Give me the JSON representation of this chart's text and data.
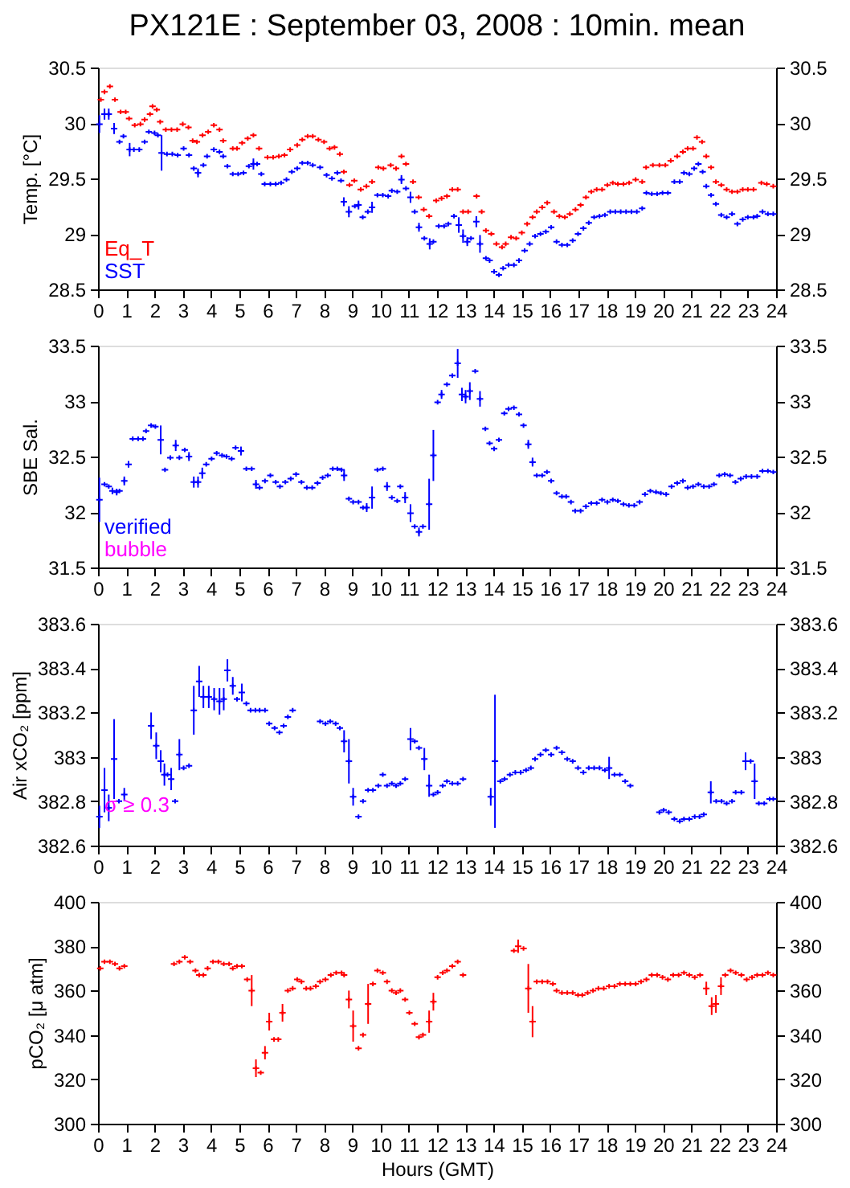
{
  "chart_data": [
    {
      "type": "scatter",
      "title": "PX121E : September 03, 2008 : 10min. mean",
      "ylabel": "Temp. [°C]",
      "xlim": [
        0,
        24
      ],
      "xticks": [
        0,
        1,
        2,
        3,
        4,
        5,
        6,
        7,
        8,
        9,
        10,
        11,
        12,
        13,
        14,
        15,
        16,
        17,
        18,
        19,
        20,
        21,
        22,
        23,
        24
      ],
      "ylim": [
        28.5,
        30.5
      ],
      "yticks": [
        28.5,
        29,
        29.5,
        30,
        30.5
      ],
      "y2lim": [
        28.5,
        30.5
      ],
      "y2ticks": [
        28.5,
        29,
        29.5,
        30,
        30.5
      ],
      "marker": "cross",
      "legend": "bottom left",
      "series": [
        {
          "name": "Eq_T",
          "color": "#ff0000",
          "x": [
            0.1,
            0.23,
            0.42,
            0.6,
            0.8,
            0.98,
            1.1,
            1.3,
            1.5,
            1.65,
            1.84,
            1.93,
            2.08,
            2.2,
            2.4,
            2.6,
            2.8,
            3.0,
            3.2,
            3.35,
            3.5,
            3.7,
            3.9,
            4.1,
            4.3,
            4.43,
            4.77,
            4.92,
            5.1,
            5.3,
            5.5,
            5.7,
            6.0,
            6.2,
            6.4,
            6.6,
            6.8,
            7.05,
            7.23,
            7.42,
            7.6,
            7.8,
            8.0,
            8.2,
            8.37,
            8.56,
            8.7,
            8.9,
            9.07,
            9.3,
            9.5,
            9.7,
            9.92,
            10.1,
            10.36,
            10.55,
            10.74,
            10.9,
            11.15,
            11.35,
            11.53,
            11.72,
            11.97,
            12.16,
            12.35,
            12.54,
            12.73,
            12.92,
            13.1,
            13.4,
            13.58,
            13.73,
            13.92,
            14.1,
            14.3,
            14.43,
            14.62,
            14.8,
            15.0,
            15.19,
            15.38,
            15.53,
            15.72,
            15.9,
            16.14,
            16.33,
            16.52,
            16.7,
            16.9,
            17.08,
            17.27,
            17.46,
            17.65,
            17.84,
            18.03,
            18.22,
            18.4,
            18.6,
            18.8,
            19.03,
            19.26,
            19.4,
            19.64,
            19.87,
            20.08,
            20.27,
            20.5,
            20.7,
            20.87,
            21.06,
            21.2,
            21.38,
            21.53,
            21.7,
            21.87,
            22.06,
            22.25,
            22.44,
            22.63,
            22.82,
            23.0,
            23.2,
            23.48,
            23.67,
            23.9
          ],
          "values": [
            30.21,
            30.28,
            30.33,
            30.21,
            30.1,
            30.1,
            30.04,
            29.98,
            29.99,
            30.03,
            30.08,
            30.15,
            30.12,
            30.01,
            29.94,
            29.94,
            29.94,
            29.99,
            29.96,
            29.84,
            29.83,
            29.89,
            29.92,
            29.98,
            29.94,
            29.84,
            29.77,
            29.77,
            29.82,
            29.86,
            29.89,
            29.77,
            29.69,
            29.69,
            29.7,
            29.71,
            29.76,
            29.8,
            29.85,
            29.88,
            29.88,
            29.85,
            29.83,
            29.77,
            29.78,
            29.72,
            29.56,
            29.44,
            29.48,
            29.4,
            29.43,
            29.47,
            29.6,
            29.59,
            29.62,
            29.59,
            29.7,
            29.63,
            29.47,
            29.33,
            29.22,
            29.16,
            29.3,
            29.32,
            29.34,
            29.4,
            29.4,
            29.2,
            29.2,
            29.34,
            29.2,
            29.03,
            29.0,
            28.91,
            28.88,
            28.91,
            28.97,
            28.96,
            29.01,
            29.09,
            29.15,
            29.2,
            29.24,
            29.28,
            29.2,
            29.16,
            29.15,
            29.18,
            29.22,
            29.26,
            29.33,
            29.38,
            29.4,
            29.4,
            29.44,
            29.46,
            29.45,
            29.45,
            29.46,
            29.49,
            29.47,
            29.6,
            29.62,
            29.62,
            29.62,
            29.66,
            29.7,
            29.74,
            29.77,
            29.77,
            29.87,
            29.83,
            29.7,
            29.6,
            29.47,
            29.44,
            29.4,
            29.38,
            29.38,
            29.4,
            29.4,
            29.4,
            29.46,
            29.45,
            29.43
          ]
        },
        {
          "name": "SST",
          "color": "#0000ff",
          "x": [
            0.05,
            0.23,
            0.38,
            0.57,
            0.76,
            0.9,
            1.12,
            1.27,
            1.46,
            1.65,
            1.8,
            2.0,
            2.12,
            2.25,
            2.44,
            2.63,
            2.82,
            3.03,
            3.22,
            3.39,
            3.54,
            3.73,
            3.86,
            4.1,
            4.3,
            4.43,
            4.58,
            4.77,
            4.96,
            5.15,
            5.34,
            5.5,
            5.63,
            5.78,
            5.9,
            6.1,
            6.29,
            6.48,
            6.67,
            6.86,
            7.05,
            7.23,
            7.42,
            7.6,
            7.86,
            8.09,
            8.28,
            8.47,
            8.6,
            8.7,
            8.88,
            9.09,
            9.22,
            9.37,
            9.55,
            9.7,
            9.89,
            10.08,
            10.27,
            10.4,
            10.59,
            10.74,
            10.9,
            11.06,
            11.21,
            11.36,
            11.55,
            11.74,
            11.87,
            12.06,
            12.25,
            12.4,
            12.6,
            12.77,
            12.92,
            13.07,
            13.2,
            13.39,
            13.52,
            13.73,
            13.86,
            14.02,
            14.19,
            14.34,
            14.53,
            14.72,
            14.9,
            15.1,
            15.28,
            15.47,
            15.66,
            15.85,
            16.04,
            16.23,
            16.42,
            16.61,
            16.8,
            16.99,
            17.18,
            17.37,
            17.56,
            17.75,
            17.94,
            18.13,
            18.31,
            18.5,
            18.69,
            18.88,
            19.07,
            19.26,
            19.41,
            19.6,
            19.79,
            19.98,
            20.17,
            20.4,
            20.59,
            20.74,
            20.93,
            21.1,
            21.25,
            21.4,
            21.53,
            21.7,
            21.87,
            22.06,
            22.25,
            22.44,
            22.63,
            22.82,
            23.0,
            23.2,
            23.33,
            23.52,
            23.71,
            23.9
          ],
          "values": [
            29.99,
            30.08,
            30.08,
            29.95,
            29.83,
            29.88,
            29.76,
            29.76,
            29.76,
            29.83,
            29.92,
            29.91,
            29.89,
            29.73,
            29.72,
            29.72,
            29.71,
            29.77,
            29.71,
            29.59,
            29.55,
            29.62,
            29.7,
            29.76,
            29.74,
            29.7,
            29.61,
            29.54,
            29.54,
            29.55,
            29.61,
            29.63,
            29.63,
            29.54,
            29.45,
            29.45,
            29.45,
            29.46,
            29.49,
            29.56,
            29.59,
            29.64,
            29.64,
            29.62,
            29.6,
            29.53,
            29.5,
            29.55,
            29.48,
            29.29,
            29.2,
            29.25,
            29.26,
            29.15,
            29.2,
            29.24,
            29.35,
            29.35,
            29.34,
            29.39,
            29.38,
            29.49,
            29.41,
            29.33,
            29.2,
            29.06,
            28.96,
            28.91,
            28.93,
            29.07,
            29.07,
            29.09,
            29.16,
            29.08,
            28.98,
            28.93,
            28.96,
            29.11,
            28.91,
            28.78,
            28.76,
            28.66,
            28.63,
            28.69,
            28.72,
            28.72,
            28.76,
            28.85,
            28.91,
            28.98,
            29.0,
            29.02,
            29.06,
            28.93,
            28.9,
            28.9,
            28.94,
            29.0,
            29.05,
            29.1,
            29.15,
            29.16,
            29.17,
            29.2,
            29.2,
            29.2,
            29.2,
            29.2,
            29.2,
            29.23,
            29.37,
            29.36,
            29.36,
            29.37,
            29.37,
            29.47,
            29.47,
            29.55,
            29.54,
            29.59,
            29.63,
            29.56,
            29.43,
            29.35,
            29.27,
            29.17,
            29.15,
            29.18,
            29.09,
            29.13,
            29.15,
            29.15,
            29.16,
            29.2,
            29.18,
            29.18
          ],
          "errors": [
            0.08,
            0.05,
            0.05,
            0.05,
            null,
            null,
            0.06,
            null,
            null,
            null,
            null,
            null,
            null,
            0.16,
            null,
            null,
            null,
            null,
            null,
            null,
            0.04,
            null,
            null,
            null,
            null,
            null,
            null,
            null,
            null,
            null,
            null,
            0.05,
            null,
            null,
            null,
            null,
            null,
            null,
            null,
            null,
            null,
            null,
            null,
            null,
            null,
            null,
            null,
            null,
            null,
            0.04,
            0.05,
            null,
            0.04,
            null,
            null,
            0.05,
            null,
            null,
            null,
            null,
            null,
            0.04,
            null,
            0.05,
            null,
            0.04,
            null,
            0.05,
            null,
            null,
            null,
            null,
            null,
            0.07,
            0.06,
            0.04,
            null,
            0.05,
            0.08,
            null,
            null,
            null,
            null,
            null,
            null,
            null,
            null,
            null,
            null,
            null,
            null,
            null,
            null,
            null,
            null,
            null,
            null,
            null,
            null,
            null,
            null,
            null,
            null,
            null,
            null,
            null,
            null,
            null,
            null,
            null,
            null,
            null,
            null,
            null,
            null,
            null,
            null,
            null,
            null,
            null,
            null,
            null,
            null,
            null,
            null,
            null,
            null,
            null,
            null,
            null,
            null,
            null,
            null,
            null,
            null,
            null
          ]
        }
      ]
    },
    {
      "type": "scatter",
      "ylabel": "SBE Sal.",
      "xlim": [
        0,
        24
      ],
      "xticks": [
        0,
        1,
        2,
        3,
        4,
        5,
        6,
        7,
        8,
        9,
        10,
        11,
        12,
        13,
        14,
        15,
        16,
        17,
        18,
        19,
        20,
        21,
        22,
        23,
        24
      ],
      "ylim": [
        31.5,
        33.5
      ],
      "yticks": [
        31.5,
        32,
        32.5,
        33,
        33.5
      ],
      "y2lim": [
        31.5,
        33.5
      ],
      "y2ticks": [
        31.5,
        32,
        32.5,
        33,
        33.5
      ],
      "marker": "cross",
      "legend": "bottom left",
      "series": [
        {
          "name": "verified",
          "color": "#0000ff",
          "x": [
            0.05,
            0.23,
            0.38,
            0.51,
            0.66,
            0.76,
            0.93,
            1.08,
            1.23,
            1.42,
            1.59,
            1.7,
            1.88,
            2.03,
            2.22,
            2.37,
            2.56,
            2.75,
            2.88,
            3.07,
            3.22,
            3.39,
            3.54,
            3.69,
            3.83,
            4.02,
            4.2,
            4.39,
            4.55,
            4.73,
            4.87,
            5.06,
            5.25,
            5.44,
            5.59,
            5.72,
            5.91,
            6.1,
            6.29,
            6.44,
            6.63,
            6.82,
            7.01,
            7.2,
            7.39,
            7.58,
            7.77,
            7.95,
            8.13,
            8.31,
            8.47,
            8.62,
            8.71,
            8.88,
            9.03,
            9.22,
            9.38,
            9.51,
            9.7,
            9.89,
            10.08,
            10.23,
            10.4,
            10.59,
            10.7,
            10.87,
            11.06,
            11.21,
            11.36,
            11.5,
            11.72,
            11.87,
            12.02,
            12.16,
            12.35,
            12.54,
            12.73,
            12.88,
            13.01,
            13.16,
            13.35,
            13.52,
            13.71,
            13.86,
            14.02,
            14.19,
            14.38,
            14.53,
            14.72,
            14.9,
            15.06,
            15.23,
            15.38,
            15.53,
            15.72,
            15.89,
            16.04,
            16.23,
            16.42,
            16.57,
            16.74,
            16.89,
            17.08,
            17.27,
            17.46,
            17.65,
            17.84,
            18.03,
            18.22,
            18.4,
            18.6,
            18.79,
            18.98,
            19.17,
            19.36,
            19.55,
            19.75,
            19.92,
            20.11,
            20.3,
            20.5,
            20.7,
            20.87,
            21.06,
            21.25,
            21.44,
            21.63,
            21.8,
            21.99,
            22.18,
            22.37,
            22.56,
            22.75,
            22.94,
            23.13,
            23.33,
            23.52,
            23.71,
            23.9
          ],
          "values": [
            32.11,
            32.25,
            32.23,
            32.19,
            32.18,
            32.19,
            32.28,
            32.43,
            32.66,
            32.66,
            32.66,
            32.73,
            32.78,
            32.77,
            32.65,
            32.38,
            32.49,
            32.6,
            32.49,
            32.56,
            32.5,
            32.27,
            32.27,
            32.35,
            32.43,
            32.48,
            32.53,
            32.51,
            32.5,
            32.48,
            32.58,
            32.55,
            32.39,
            32.39,
            32.25,
            32.22,
            32.28,
            32.33,
            32.27,
            32.23,
            32.27,
            32.3,
            32.34,
            32.27,
            32.22,
            32.22,
            32.26,
            32.31,
            32.33,
            32.39,
            32.39,
            32.38,
            32.33,
            32.12,
            32.09,
            32.09,
            32.04,
            32.04,
            32.13,
            32.38,
            32.39,
            32.23,
            32.13,
            32.1,
            32.23,
            32.13,
            31.99,
            31.87,
            31.82,
            31.87,
            32.07,
            32.51,
            32.99,
            33.06,
            33.15,
            33.23,
            33.34,
            33.06,
            33.04,
            33.09,
            33.27,
            33.02,
            32.75,
            32.62,
            32.57,
            32.65,
            32.89,
            32.93,
            32.94,
            32.88,
            32.78,
            32.61,
            32.45,
            32.33,
            32.33,
            32.36,
            32.28,
            32.17,
            32.14,
            32.14,
            32.09,
            32.01,
            32.01,
            32.05,
            32.08,
            32.08,
            32.11,
            32.09,
            32.11,
            32.1,
            32.07,
            32.06,
            32.06,
            32.09,
            32.16,
            32.19,
            32.18,
            32.17,
            32.16,
            32.23,
            32.26,
            32.28,
            32.22,
            32.23,
            32.25,
            32.23,
            32.23,
            32.25,
            32.33,
            32.34,
            32.33,
            32.27,
            32.3,
            32.32,
            32.32,
            32.32,
            32.37,
            32.37,
            32.36
          ],
          "errors": [
            0.2,
            null,
            null,
            0.03,
            0.03,
            null,
            0.04,
            0.03,
            null,
            null,
            null,
            null,
            null,
            null,
            0.13,
            null,
            null,
            0.05,
            null,
            null,
            0.04,
            0.05,
            0.05,
            0.05,
            null,
            null,
            null,
            null,
            null,
            null,
            null,
            0.04,
            null,
            null,
            0.04,
            null,
            null,
            null,
            null,
            null,
            null,
            null,
            null,
            null,
            null,
            null,
            null,
            null,
            null,
            null,
            null,
            null,
            0.05,
            null,
            null,
            null,
            null,
            0.04,
            0.1,
            null,
            null,
            0.04,
            null,
            null,
            null,
            0.05,
            0.08,
            null,
            0.04,
            null,
            0.23,
            0.23,
            null,
            0.04,
            null,
            null,
            0.13,
            0.06,
            0.06,
            0.08,
            null,
            0.07,
            null,
            null,
            null,
            null,
            null,
            null,
            null,
            null,
            null,
            0.04,
            0.04,
            null,
            null,
            null,
            null,
            null,
            null,
            null,
            null,
            null,
            null,
            null,
            null,
            null,
            null,
            null,
            null,
            null,
            null,
            null,
            null,
            null,
            null,
            null,
            null,
            null,
            null,
            null,
            null,
            null,
            null,
            null,
            null,
            null,
            null,
            null,
            null,
            null,
            null,
            null,
            null,
            null,
            null,
            null,
            null,
            null,
            null
          ]
        },
        {
          "name": "bubble",
          "color": "#ff00ff"
        }
      ]
    },
    {
      "type": "scatter",
      "ylabel": "Air xCO₂ [ppm]",
      "xlim": [
        0,
        24
      ],
      "xticks": [
        0,
        1,
        2,
        3,
        4,
        5,
        6,
        7,
        8,
        9,
        10,
        11,
        12,
        13,
        14,
        15,
        16,
        17,
        18,
        19,
        20,
        21,
        22,
        23,
        24
      ],
      "ylim": [
        382.6,
        383.6
      ],
      "yticks": [
        382.6,
        382.8,
        383,
        383.2,
        383.4,
        383.6
      ],
      "y2lim": [
        382.6,
        383.6
      ],
      "y2ticks": [
        382.6,
        382.8,
        383,
        383.2,
        383.4,
        383.6
      ],
      "marker": "cross",
      "series": [
        {
          "color": "#0000ff",
          "x": [
            0.05,
            0.23,
            0.38,
            0.57,
            0.74,
            0.93,
            1.88,
            2.06,
            2.22,
            2.35,
            2.46,
            2.59,
            2.73,
            2.88,
            3.03,
            3.22,
            3.39,
            3.58,
            3.73,
            3.92,
            4.11,
            4.3,
            4.45,
            4.58,
            4.77,
            4.92,
            5.09,
            5.25,
            5.4,
            5.57,
            5.72,
            5.91,
            6.06,
            6.25,
            6.42,
            6.57,
            6.72,
            6.89,
            7.86,
            8.05,
            8.22,
            8.41,
            8.56,
            8.71,
            8.88,
            9.03,
            9.22,
            9.38,
            9.56,
            9.73,
            9.92,
            10.08,
            10.23,
            10.4,
            10.55,
            10.7,
            10.87,
            11.06,
            11.21,
            11.36,
            11.55,
            11.72,
            11.87,
            12.02,
            12.2,
            12.35,
            12.54,
            12.73,
            12.92,
            13.9,
            14.05,
            14.24,
            14.39,
            14.58,
            14.77,
            14.96,
            15.15,
            15.32,
            15.47,
            15.66,
            15.85,
            16.04,
            16.23,
            16.42,
            16.61,
            16.8,
            16.99,
            17.18,
            17.37,
            17.56,
            17.75,
            17.94,
            18.09,
            18.28,
            18.47,
            18.66,
            18.84,
            19.87,
            20.02,
            20.2,
            20.4,
            20.59,
            20.74,
            20.93,
            21.12,
            21.29,
            21.44,
            21.69,
            21.88,
            22.07,
            22.25,
            22.44,
            22.57,
            22.77,
            22.92,
            23.1,
            23.24,
            23.39,
            23.58,
            23.77,
            23.9
          ],
          "values": [
            382.73,
            382.85,
            382.77,
            382.99,
            382.8,
            382.83,
            383.14,
            383.05,
            382.98,
            382.92,
            382.92,
            382.9,
            382.8,
            383.01,
            382.95,
            382.96,
            383.21,
            383.34,
            383.27,
            383.27,
            383.26,
            383.25,
            383.26,
            383.39,
            383.32,
            383.26,
            383.29,
            383.24,
            383.21,
            383.21,
            383.21,
            383.21,
            383.15,
            383.13,
            383.11,
            383.14,
            383.18,
            383.21,
            383.16,
            383.15,
            383.16,
            383.15,
            383.13,
            383.07,
            382.98,
            382.82,
            382.73,
            382.8,
            382.85,
            382.85,
            382.87,
            382.92,
            382.87,
            382.88,
            382.87,
            382.88,
            382.9,
            383.08,
            383.07,
            383.04,
            382.99,
            382.87,
            382.83,
            382.84,
            382.87,
            382.89,
            382.88,
            382.88,
            382.9,
            382.82,
            382.98,
            382.89,
            382.9,
            382.92,
            382.93,
            382.93,
            382.94,
            382.95,
            382.99,
            383.01,
            383.03,
            383.01,
            383.04,
            383.02,
            382.99,
            382.98,
            382.95,
            382.93,
            382.95,
            382.95,
            382.95,
            382.94,
            382.95,
            382.92,
            382.92,
            382.89,
            382.87,
            382.75,
            382.76,
            382.75,
            382.72,
            382.71,
            382.72,
            382.72,
            382.73,
            382.73,
            382.74,
            382.84,
            382.8,
            382.8,
            382.79,
            382.8,
            382.84,
            382.84,
            382.98,
            382.98,
            382.89,
            382.79,
            382.79,
            382.81,
            382.81
          ],
          "errors": [
            0.05,
            0.1,
            0.06,
            0.18,
            null,
            0.03,
            0.06,
            0.06,
            0.05,
            0.05,
            null,
            0.05,
            null,
            0.07,
            null,
            null,
            0.11,
            0.07,
            0.05,
            0.05,
            0.05,
            0.06,
            0.05,
            0.05,
            0.04,
            null,
            0.04,
            null,
            null,
            null,
            null,
            null,
            null,
            null,
            null,
            null,
            null,
            null,
            null,
            null,
            null,
            null,
            null,
            0.05,
            0.1,
            0.04,
            null,
            null,
            null,
            null,
            null,
            null,
            null,
            null,
            null,
            null,
            null,
            0.05,
            null,
            null,
            0.05,
            0.05,
            null,
            null,
            null,
            null,
            null,
            null,
            null,
            0.04,
            0.3,
            null,
            null,
            null,
            null,
            null,
            null,
            null,
            null,
            null,
            null,
            null,
            null,
            null,
            null,
            null,
            null,
            null,
            null,
            null,
            null,
            null,
            0.05,
            null,
            null,
            null,
            null,
            null,
            null,
            null,
            null,
            null,
            null,
            null,
            null,
            null,
            null,
            0.05,
            null,
            null,
            null,
            null,
            null,
            null,
            0.04,
            null,
            0.08,
            null,
            null,
            null,
            null
          ]
        },
        {
          "name": "σ ≥ 0.3",
          "color": "#ff00ff"
        }
      ]
    },
    {
      "type": "scatter",
      "xlabel": "Hours (GMT)",
      "ylabel": "pCO₂ [μ atm]",
      "xlim": [
        0,
        24
      ],
      "xticks": [
        0,
        1,
        2,
        3,
        4,
        5,
        6,
        7,
        8,
        9,
        10,
        11,
        12,
        13,
        14,
        15,
        16,
        17,
        18,
        19,
        20,
        21,
        22,
        23,
        24
      ],
      "ylim": [
        300,
        400
      ],
      "yticks": [
        300,
        320,
        340,
        360,
        380,
        400
      ],
      "y2lim": [
        300,
        400
      ],
      "y2ticks": [
        300,
        320,
        340,
        360,
        380,
        400
      ],
      "marker": "cross",
      "series": [
        {
          "color": "#ff0000",
          "x": [
            0.08,
            0.23,
            0.42,
            0.6,
            0.76,
            0.93,
            2.69,
            2.88,
            3.07,
            3.26,
            3.45,
            3.58,
            3.73,
            3.88,
            4.07,
            4.26,
            4.45,
            4.64,
            4.77,
            4.92,
            5.09,
            5.28,
            5.44,
            5.59,
            5.76,
            5.91,
            6.06,
            6.23,
            6.38,
            6.53,
            6.72,
            6.89,
            7.05,
            7.2,
            7.37,
            7.52,
            7.71,
            7.86,
            8.05,
            8.24,
            8.43,
            8.62,
            8.71,
            8.88,
            9.03,
            9.22,
            9.38,
            9.56,
            9.73,
            9.89,
            10.08,
            10.23,
            10.4,
            10.55,
            10.7,
            10.87,
            11.02,
            11.21,
            11.36,
            11.5,
            11.72,
            11.87,
            12.02,
            12.2,
            12.35,
            12.54,
            12.73,
            12.92,
            14.72,
            14.87,
            15.06,
            15.23,
            15.38,
            15.53,
            15.72,
            15.91,
            16.1,
            16.23,
            16.42,
            16.61,
            16.8,
            16.99,
            17.14,
            17.33,
            17.52,
            17.71,
            17.9,
            18.09,
            18.28,
            18.47,
            18.66,
            18.84,
            19.03,
            19.22,
            19.41,
            19.6,
            19.79,
            19.98,
            20.17,
            20.36,
            20.55,
            20.74,
            20.93,
            21.12,
            21.31,
            21.53,
            21.72,
            21.87,
            22.05,
            22.2,
            22.39,
            22.57,
            22.77,
            22.96,
            23.15,
            23.33,
            23.52,
            23.71,
            23.9
          ],
          "values": [
            370,
            373,
            373,
            372,
            370,
            371,
            372,
            373,
            375,
            373,
            369,
            367,
            367,
            370,
            373,
            373,
            372,
            372,
            370,
            371,
            371,
            365,
            360,
            325,
            323,
            332,
            346,
            338,
            338,
            350,
            360,
            361,
            365,
            364,
            361,
            361,
            362,
            364,
            365,
            367,
            368,
            368,
            367,
            356,
            344,
            334,
            340,
            354,
            363,
            369,
            368,
            364,
            360,
            359,
            360,
            356,
            350,
            345,
            339,
            340,
            346,
            355,
            366,
            368,
            369,
            371,
            373,
            367,
            378,
            380,
            379,
            361,
            346,
            364,
            364,
            364,
            363,
            360,
            359,
            359,
            359,
            358,
            358,
            359,
            360,
            361,
            361,
            362,
            362,
            363,
            363,
            363,
            363,
            364,
            365,
            367,
            367,
            366,
            365,
            367,
            367,
            368,
            367,
            366,
            367,
            361,
            353,
            354,
            362,
            367,
            369,
            368,
            367,
            365,
            366,
            367,
            367,
            368,
            367
          ],
          "errors": [
            null,
            null,
            null,
            null,
            null,
            null,
            null,
            null,
            null,
            null,
            null,
            null,
            null,
            null,
            null,
            null,
            null,
            null,
            null,
            null,
            null,
            null,
            7,
            4,
            null,
            3,
            4,
            null,
            null,
            4,
            null,
            null,
            null,
            null,
            null,
            null,
            null,
            null,
            null,
            null,
            null,
            null,
            null,
            4,
            7,
            null,
            null,
            9,
            null,
            null,
            null,
            null,
            null,
            null,
            null,
            null,
            null,
            null,
            null,
            null,
            5,
            4,
            null,
            null,
            null,
            null,
            null,
            null,
            null,
            3,
            null,
            11,
            7,
            null,
            null,
            null,
            null,
            null,
            null,
            null,
            null,
            null,
            null,
            null,
            null,
            null,
            null,
            null,
            null,
            null,
            null,
            null,
            null,
            null,
            null,
            null,
            null,
            null,
            null,
            null,
            null,
            null,
            null,
            null,
            null,
            3,
            4,
            4,
            4,
            null,
            null,
            null,
            null,
            null,
            null,
            null,
            null,
            null,
            null
          ]
        }
      ]
    }
  ]
}
